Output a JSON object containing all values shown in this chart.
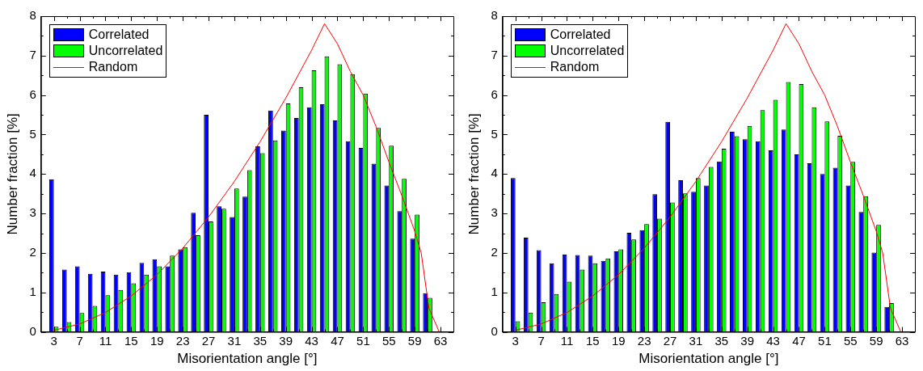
{
  "chart_data": [
    {
      "type": "bar",
      "xlabel": "Misorientation angle [°]",
      "ylabel": "Number fraction [%]",
      "legend": "top left",
      "grid": false,
      "x": [
        3,
        5,
        7,
        9,
        11,
        13,
        15,
        17,
        19,
        21,
        23,
        25,
        27,
        29,
        31,
        33,
        35,
        37,
        39,
        41,
        43,
        45,
        47,
        49,
        51,
        53,
        55,
        57,
        59,
        61,
        63
      ],
      "xlim": [
        1,
        65
      ],
      "ylim": [
        0,
        8
      ],
      "xticks": [
        3,
        {
          "value": 5,
          "label": null
        },
        7,
        {
          "value": 9,
          "label": null
        },
        11,
        {
          "value": 13,
          "label": null
        },
        15,
        {
          "value": 17,
          "label": null
        },
        19,
        {
          "value": 21,
          "label": null
        },
        23,
        {
          "value": 25,
          "label": null
        },
        27,
        {
          "value": 29,
          "label": null
        },
        31,
        {
          "value": 33,
          "label": null
        },
        35,
        {
          "value": 37,
          "label": null
        },
        39,
        {
          "value": 41,
          "label": null
        },
        43,
        {
          "value": 45,
          "label": null
        },
        47,
        {
          "value": 49,
          "label": null
        },
        51,
        {
          "value": 53,
          "label": null
        },
        55,
        {
          "value": 57,
          "label": null
        },
        59,
        {
          "value": 61,
          "label": null
        },
        63
      ],
      "yticks": [
        0,
        {
          "value": 0.5,
          "label": null
        },
        1,
        {
          "value": 1.5,
          "label": null
        },
        2,
        {
          "value": 2.5,
          "label": null
        },
        3,
        {
          "value": 3.5,
          "label": null
        },
        4,
        {
          "value": 4.5,
          "label": null
        },
        5,
        {
          "value": 5.5,
          "label": null
        },
        6,
        {
          "value": 6.5,
          "label": null
        },
        7,
        {
          "value": 7.5,
          "label": null
        },
        8
      ],
      "series": [
        {
          "name": "Correlated",
          "color": "#0000ff",
          "values": [
            3.87,
            1.58,
            1.66,
            1.47,
            1.53,
            1.45,
            1.51,
            1.75,
            1.84,
            1.66,
            2.09,
            3.02,
            5.5,
            3.18,
            2.91,
            3.43,
            4.7,
            5.61,
            5.1,
            5.42,
            5.69,
            5.77,
            5.36,
            4.83,
            4.66,
            4.26,
            3.71,
            3.06,
            2.36,
            0.98,
            null
          ]
        },
        {
          "name": "Uncorrelated",
          "color": "#00ff00",
          "values": [
            0.13,
            0.25,
            0.48,
            0.66,
            0.93,
            1.06,
            1.23,
            1.45,
            1.66,
            1.93,
            2.15,
            2.45,
            2.8,
            3.12,
            3.63,
            4.1,
            4.53,
            4.85,
            5.79,
            6.2,
            6.63,
            6.98,
            6.78,
            6.53,
            6.04,
            5.17,
            4.72,
            3.88,
            2.97,
            0.86,
            0
          ]
        },
        {
          "name": "Random",
          "type": "line",
          "color": "#ff0000",
          "marker": "none",
          "line_style": "solid",
          "x": [
            3,
            7,
            11,
            15,
            19,
            23,
            27,
            31,
            35,
            39,
            43,
            45,
            47,
            49,
            51,
            53,
            55,
            57,
            59,
            60,
            61.2,
            62.8
          ],
          "values": [
            0.04,
            0.2,
            0.49,
            0.91,
            1.45,
            2.12,
            2.91,
            3.81,
            4.82,
            5.93,
            7.14,
            7.81,
            7.3,
            6.6,
            6.0,
            5.2,
            4.3,
            3.45,
            2.55,
            2.0,
            0.6,
            0
          ]
        }
      ]
    },
    {
      "type": "bar",
      "xlabel": "Misorientation angle [°]",
      "ylabel": "Number fraction [%]",
      "legend": "top left",
      "grid": false,
      "x": [
        3,
        5,
        7,
        9,
        11,
        13,
        15,
        17,
        19,
        21,
        23,
        25,
        27,
        29,
        31,
        33,
        35,
        37,
        39,
        41,
        43,
        45,
        47,
        49,
        51,
        53,
        55,
        57,
        59,
        61,
        63
      ],
      "xlim": [
        1,
        65
      ],
      "ylim": [
        0,
        8
      ],
      "xticks": [
        3,
        {
          "value": 5,
          "label": null
        },
        7,
        {
          "value": 9,
          "label": null
        },
        11,
        {
          "value": 13,
          "label": null
        },
        15,
        {
          "value": 17,
          "label": null
        },
        19,
        {
          "value": 21,
          "label": null
        },
        23,
        {
          "value": 25,
          "label": null
        },
        27,
        {
          "value": 29,
          "label": null
        },
        31,
        {
          "value": 33,
          "label": null
        },
        35,
        {
          "value": 37,
          "label": null
        },
        39,
        {
          "value": 41,
          "label": null
        },
        43,
        {
          "value": 45,
          "label": null
        },
        47,
        {
          "value": 49,
          "label": null
        },
        51,
        {
          "value": 53,
          "label": null
        },
        55,
        {
          "value": 57,
          "label": null
        },
        59,
        {
          "value": 61,
          "label": null
        },
        63
      ],
      "yticks": [
        0,
        {
          "value": 0.5,
          "label": null
        },
        1,
        {
          "value": 1.5,
          "label": null
        },
        2,
        {
          "value": 2.5,
          "label": null
        },
        3,
        {
          "value": 3.5,
          "label": null
        },
        4,
        {
          "value": 4.5,
          "label": null
        },
        5,
        {
          "value": 5.5,
          "label": null
        },
        6,
        {
          "value": 6.5,
          "label": null
        },
        7,
        {
          "value": 7.5,
          "label": null
        },
        8
      ],
      "series": [
        {
          "name": "Correlated",
          "color": "#0000ff",
          "values": [
            3.9,
            2.39,
            2.07,
            1.74,
            1.96,
            1.95,
            1.93,
            1.8,
            2.04,
            2.51,
            2.58,
            3.49,
            5.32,
            3.84,
            3.55,
            3.71,
            4.32,
            5.07,
            4.88,
            4.83,
            4.6,
            5.13,
            4.5,
            4.27,
            4.0,
            4.16,
            3.71,
            3.04,
            2.01,
            0.63,
            null
          ]
        },
        {
          "name": "Uncorrelated",
          "color": "#00ff00",
          "values": [
            0.27,
            0.49,
            0.75,
            0.96,
            1.27,
            1.58,
            1.74,
            1.86,
            2.09,
            2.34,
            2.73,
            2.87,
            3.28,
            3.51,
            3.9,
            4.18,
            4.64,
            4.96,
            5.22,
            5.62,
            5.88,
            6.33,
            6.28,
            5.69,
            5.33,
            4.97,
            4.31,
            3.44,
            2.71,
            0.73,
            0
          ]
        },
        {
          "name": "Random",
          "type": "line",
          "color": "#ff0000",
          "marker": "none",
          "line_style": "solid",
          "x": [
            3,
            7,
            11,
            15,
            19,
            23,
            27,
            31,
            35,
            39,
            43,
            45,
            47,
            49,
            51,
            53,
            55,
            57,
            59,
            60,
            61.2,
            62.8
          ],
          "values": [
            0.04,
            0.2,
            0.49,
            0.91,
            1.45,
            2.12,
            2.91,
            3.81,
            4.82,
            5.93,
            7.14,
            7.81,
            7.3,
            6.6,
            6.0,
            5.2,
            4.3,
            3.45,
            2.55,
            2.0,
            0.6,
            0
          ]
        }
      ]
    }
  ]
}
